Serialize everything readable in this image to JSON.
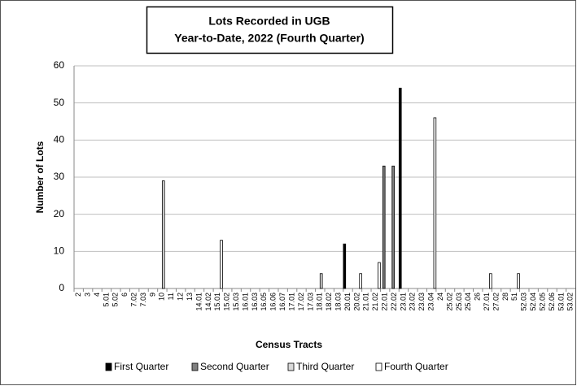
{
  "chart_data": {
    "type": "bar",
    "title": [
      "Lots Recorded in UGB",
      "Year-to-Date, 2022 (Fourth Quarter)"
    ],
    "x_label": "Census Tracts",
    "y_label": "Number of Lots",
    "categories": [
      "2",
      "3",
      "4",
      "5.01",
      "5.02",
      "6",
      "7.02",
      "7.03",
      "9",
      "10",
      "11",
      "12",
      "13",
      "14.01",
      "14.02",
      "15.01",
      "15.02",
      "15.03",
      "16.01",
      "16.03",
      "16.05",
      "16.06",
      "16.07",
      "17.01",
      "17.02",
      "17.03",
      "18.01",
      "18.02",
      "18.03",
      "20.01",
      "20.02",
      "21.01",
      "21.02",
      "22.01",
      "22.02",
      "23.01",
      "23.02",
      "23.03",
      "23.04",
      "24",
      "25.02",
      "25.03",
      "25.04",
      "26",
      "27.01",
      "27.02",
      "28",
      "51",
      "52.03",
      "52.04",
      "52.05",
      "52.06",
      "53.01",
      "53.02"
    ],
    "series": [
      {
        "name": "First Quarter",
        "color": "#000000",
        "values": [
          0,
          0,
          0,
          0,
          0,
          0,
          0,
          0,
          0,
          0,
          0,
          0,
          0,
          0,
          0,
          0,
          0,
          0,
          0,
          0,
          0,
          0,
          0,
          0,
          0,
          0,
          0,
          0,
          0,
          12,
          0,
          0,
          0,
          0,
          0,
          54,
          0,
          0,
          0,
          0,
          0,
          0,
          0,
          0,
          0,
          0,
          0,
          0,
          0,
          0,
          0,
          0,
          0,
          0
        ]
      },
      {
        "name": "Second Quarter",
        "color": "#808080",
        "values": [
          0,
          0,
          0,
          0,
          0,
          0,
          0,
          0,
          0,
          0,
          0,
          0,
          0,
          0,
          0,
          0,
          0,
          0,
          0,
          0,
          0,
          0,
          0,
          0,
          0,
          0,
          0,
          0,
          0,
          0,
          0,
          0,
          0,
          33,
          33,
          0,
          0,
          0,
          0,
          0,
          0,
          0,
          0,
          0,
          0,
          0,
          0,
          0,
          0,
          0,
          0,
          0,
          0,
          0
        ]
      },
      {
        "name": "Third Quarter",
        "color": "#d9d9d9",
        "values": [
          0,
          0,
          0,
          0,
          0,
          0,
          0,
          0,
          0,
          29,
          0,
          0,
          0,
          0,
          0,
          0,
          0,
          0,
          0,
          0,
          0,
          0,
          0,
          0,
          0,
          0,
          4,
          0,
          0,
          0,
          0,
          0,
          0,
          0,
          0,
          0,
          0,
          0,
          0,
          0,
          0,
          0,
          0,
          0,
          0,
          0,
          0,
          0,
          0,
          0,
          0,
          0,
          0,
          0
        ]
      },
      {
        "name": "Fourth Quarter",
        "color": "#ffffff",
        "values": [
          0,
          0,
          0,
          0,
          0,
          0,
          0,
          0,
          0,
          0,
          0,
          0,
          0,
          0,
          0,
          13,
          0,
          0,
          0,
          0,
          0,
          0,
          0,
          0,
          0,
          0,
          0,
          0,
          0,
          0,
          4,
          0,
          7,
          0,
          0,
          0,
          0,
          0,
          46,
          0,
          0,
          0,
          0,
          0,
          4,
          0,
          0,
          4,
          0,
          0,
          0,
          0,
          0,
          0
        ]
      }
    ],
    "ylim": [
      0,
      60
    ],
    "yticks": [
      0,
      10,
      20,
      30,
      40,
      50,
      60
    ],
    "grid": true,
    "legend": "bottom"
  }
}
